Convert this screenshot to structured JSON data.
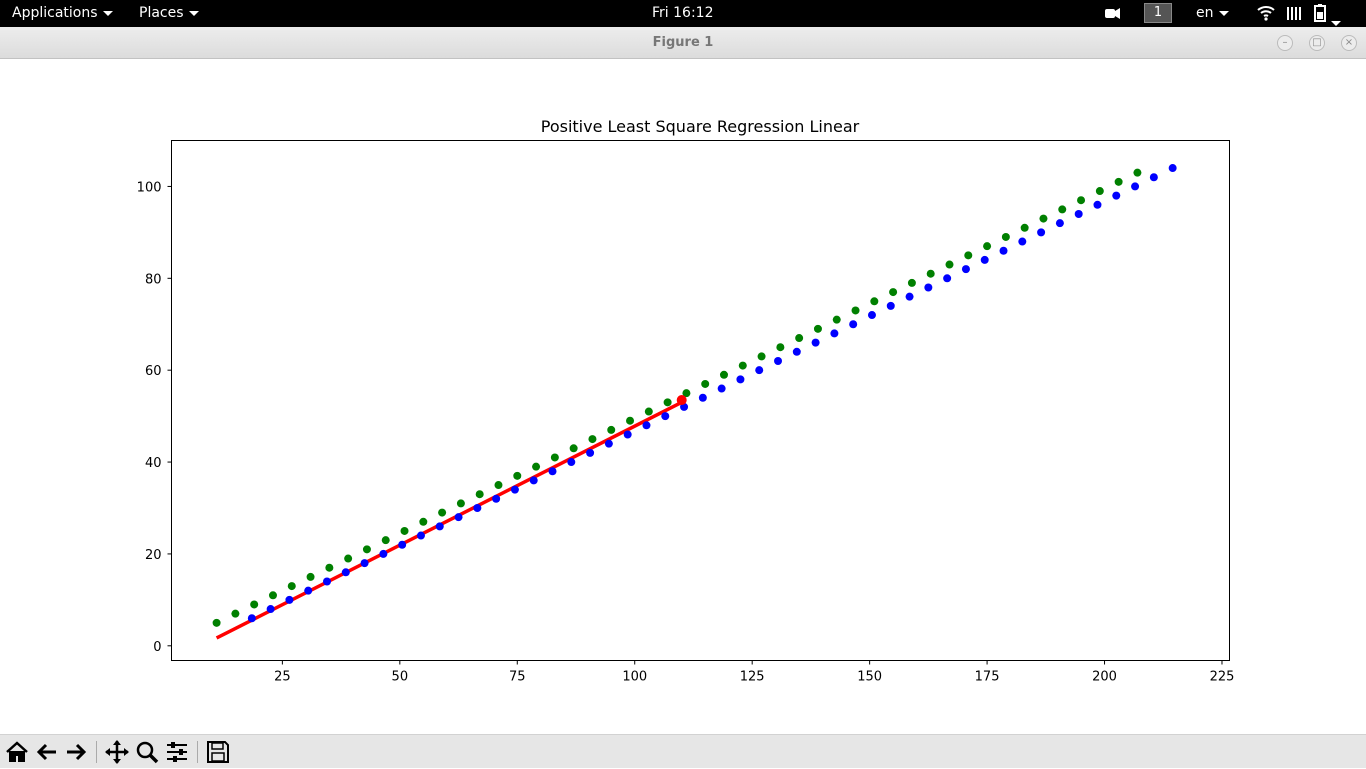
{
  "topbar": {
    "applications_label": "Applications",
    "places_label": "Places",
    "clock": "Fri 16:12",
    "workspace": "1",
    "language": "en"
  },
  "window": {
    "title": "Figure 1"
  },
  "toolbar": {
    "icons": [
      "home-icon",
      "back-arrow-icon",
      "forward-arrow-icon",
      "pan-icon",
      "zoom-icon",
      "configure-subplots-icon",
      "save-icon"
    ]
  },
  "chart_data": {
    "type": "scatter",
    "title": "Positive Least Square Regression Linear",
    "xlabel": "",
    "ylabel": "",
    "xlim": [
      1.4,
      226.6
    ],
    "ylim": [
      -3.2,
      110
    ],
    "xticks": [
      25,
      50,
      75,
      100,
      125,
      150,
      175,
      200,
      225
    ],
    "yticks": [
      0,
      20,
      40,
      60,
      80,
      100
    ],
    "grid": false,
    "series": [
      {
        "kind": "scatter",
        "color": "#0000ff",
        "x": [
          18.5,
          22.5,
          26.5,
          30.5,
          34.5,
          38.5,
          42.5,
          46.5,
          50.5,
          54.5,
          58.5,
          62.5,
          66.5,
          70.5,
          74.5,
          78.5,
          82.5,
          86.5,
          90.5,
          94.5,
          98.5,
          102.5,
          106.5,
          110.5,
          114.5,
          118.5,
          122.5,
          126.5,
          130.5,
          134.5,
          138.5,
          142.5,
          146.5,
          150.5,
          154.5,
          158.5,
          162.5,
          166.5,
          170.5,
          174.5,
          178.5,
          182.5,
          186.5,
          190.5,
          194.5,
          198.5,
          202.5,
          206.5,
          210.5,
          214.5
        ],
        "y": [
          6,
          8,
          10,
          12,
          14,
          16,
          18,
          20,
          22,
          24,
          26,
          28,
          30,
          32,
          34,
          36,
          38,
          40,
          42,
          44,
          46,
          48,
          50,
          52,
          54,
          56,
          58,
          60,
          62,
          64,
          66,
          68,
          70,
          72,
          74,
          76,
          78,
          80,
          82,
          84,
          86,
          88,
          90,
          92,
          94,
          96,
          98,
          100,
          102,
          104
        ]
      },
      {
        "kind": "scatter",
        "color": "#008000",
        "x": [
          11,
          15,
          19,
          23,
          27,
          31,
          35,
          39,
          43,
          47,
          51,
          55,
          59,
          63,
          67,
          71,
          75,
          79,
          83,
          87,
          91,
          95,
          99,
          103,
          107,
          111,
          115,
          119,
          123,
          127,
          131,
          135,
          139,
          143,
          147,
          151,
          155,
          159,
          163,
          167,
          171,
          175,
          179,
          183,
          187,
          191,
          195,
          199,
          203,
          207
        ],
        "y": [
          5,
          7,
          9,
          11,
          13,
          15,
          17,
          19,
          21,
          23,
          25,
          27,
          29,
          31,
          33,
          35,
          37,
          39,
          41,
          43,
          45,
          47,
          49,
          51,
          53,
          55,
          57,
          59,
          61,
          63,
          65,
          67,
          69,
          71,
          73,
          75,
          77,
          79,
          81,
          83,
          85,
          87,
          89,
          91,
          93,
          95,
          97,
          99,
          101,
          103
        ]
      },
      {
        "kind": "line",
        "color": "#ff0000",
        "x": [
          11,
          110
        ],
        "y": [
          1.7,
          53
        ]
      },
      {
        "kind": "point",
        "color": "#ff0000",
        "x": [
          110
        ],
        "y": [
          53.5
        ]
      }
    ]
  }
}
